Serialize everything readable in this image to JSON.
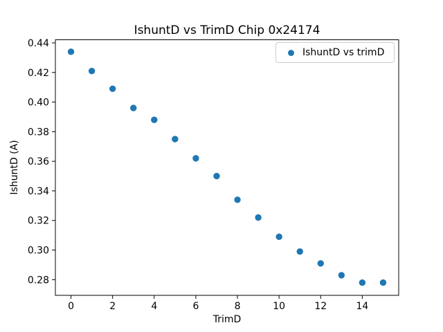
{
  "chart_data": {
    "type": "scatter",
    "title": "IshuntD vs TrimD Chip 0x24174",
    "xlabel": "TrimD",
    "ylabel": "IshuntD (A)",
    "legend": [
      {
        "label": "IshuntD vs trimD",
        "marker_color": "#1f77b4"
      }
    ],
    "legend_position": "upper right",
    "grid": false,
    "background_color": "#ffffff",
    "axis_color": "#000000",
    "legend_border_color": "#cccccc",
    "marker_color": "#1f77b4",
    "x": [
      0,
      1,
      2,
      3,
      4,
      5,
      6,
      7,
      8,
      9,
      10,
      11,
      12,
      13,
      14,
      15
    ],
    "y": [
      0.434,
      0.421,
      0.409,
      0.396,
      0.388,
      0.375,
      0.362,
      0.35,
      0.334,
      0.322,
      0.309,
      0.299,
      0.291,
      0.283,
      0.278,
      0.278
    ],
    "xlim": [
      -0.75,
      15.75
    ],
    "ylim": [
      0.2694,
      0.4421
    ],
    "xticks": [
      0,
      2,
      4,
      6,
      8,
      10,
      12,
      14
    ],
    "yticks": [
      0.28,
      0.3,
      0.32,
      0.34,
      0.36,
      0.38,
      0.4,
      0.42,
      0.44
    ],
    "ytick_decimals": 2
  }
}
